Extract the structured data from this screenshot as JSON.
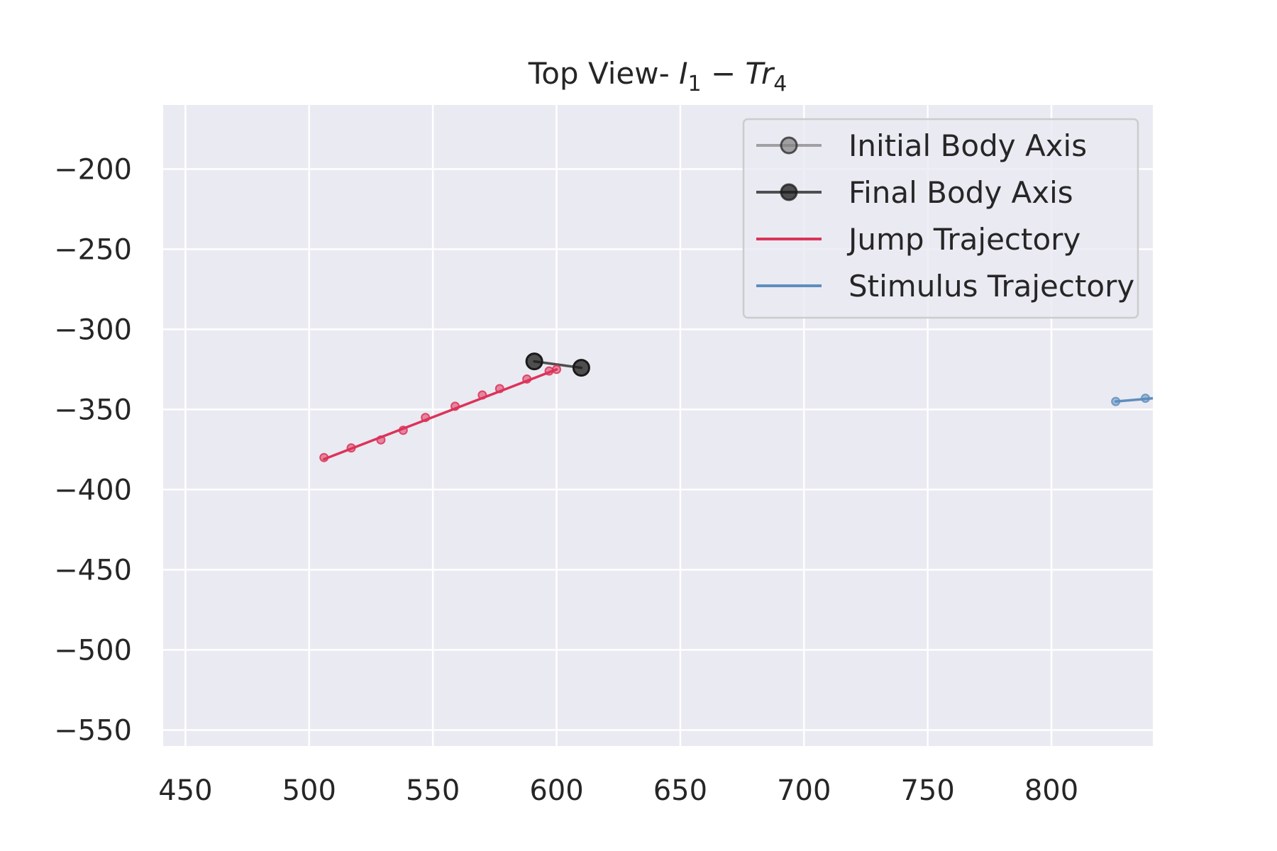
{
  "chart_data": {
    "type": "scatter",
    "title_parts": {
      "prefix": "Top View- ",
      "base1": "I",
      "sub1": "1",
      "op": " − ",
      "base2": "Tr",
      "sub2": "4"
    },
    "xlabel": "",
    "ylabel": "",
    "xlim": [
      441,
      841
    ],
    "ylim": [
      -560,
      -160
    ],
    "xticks": [
      450,
      500,
      550,
      600,
      650,
      700,
      750,
      800
    ],
    "xtick_labels": [
      "450",
      "500",
      "550",
      "600",
      "650",
      "700",
      "750",
      "800"
    ],
    "yticks": [
      -200,
      -250,
      -300,
      -350,
      -400,
      -450,
      -500,
      -550
    ],
    "ytick_labels": [
      "−200",
      "−250",
      "−300",
      "−350",
      "−400",
      "−450",
      "−500",
      "−550"
    ],
    "grid": true,
    "background": "#eaeaf2",
    "legend_position": "top-right",
    "series": [
      {
        "name": "Initial Body Axis",
        "kind": "line-marker",
        "color": "#808080",
        "alpha": 0.7,
        "points": []
      },
      {
        "name": "Final Body Axis",
        "kind": "line-marker",
        "color": "#1a1a1a",
        "alpha": 0.75,
        "points": [
          [
            591,
            -320
          ],
          [
            610,
            -324
          ]
        ]
      },
      {
        "name": "Jump Trajectory",
        "kind": "line",
        "color": "#dc3359",
        "points": [
          [
            506,
            -381
          ],
          [
            600,
            -325
          ]
        ],
        "scatter": [
          [
            506,
            -380
          ],
          [
            517,
            -374
          ],
          [
            529,
            -369
          ],
          [
            538,
            -363
          ],
          [
            547,
            -355
          ],
          [
            559,
            -348
          ],
          [
            570,
            -341
          ],
          [
            577,
            -337
          ],
          [
            588,
            -331
          ],
          [
            597,
            -326
          ],
          [
            600,
            -325
          ]
        ]
      },
      {
        "name": "Stimulus Trajectory",
        "kind": "line",
        "color": "#5d8ebd",
        "points": [
          [
            826,
            -345
          ],
          [
            841,
            -343
          ]
        ],
        "scatter": [
          [
            826,
            -345
          ],
          [
            838,
            -343
          ]
        ]
      }
    ]
  }
}
